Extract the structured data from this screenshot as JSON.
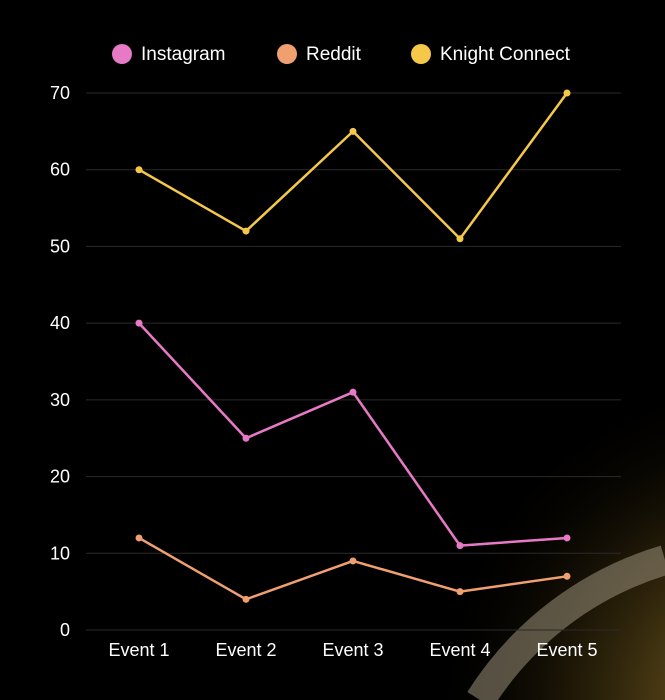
{
  "chart_data": {
    "type": "line",
    "categories": [
      "Event 1",
      "Event 2",
      "Event 3",
      "Event 4",
      "Event 5"
    ],
    "series": [
      {
        "name": "Instagram",
        "color": "#e879c6",
        "values": [
          40,
          25,
          31,
          11,
          12
        ]
      },
      {
        "name": "Reddit",
        "color": "#f0a070",
        "values": [
          12,
          4,
          9,
          5,
          7
        ]
      },
      {
        "name": "Knight Connect",
        "color": "#f5c84a",
        "values": [
          60,
          52,
          65,
          51,
          70
        ]
      }
    ],
    "yticks": [
      "0",
      "10",
      "20",
      "30",
      "40",
      "50",
      "60",
      "70"
    ],
    "ylim": [
      0,
      70
    ],
    "grid": true,
    "legend_position": "top",
    "colors": {
      "background": "#000000",
      "grid": "#2a2a2a",
      "text": "#ffffff",
      "glow": "#f5c84a"
    }
  }
}
